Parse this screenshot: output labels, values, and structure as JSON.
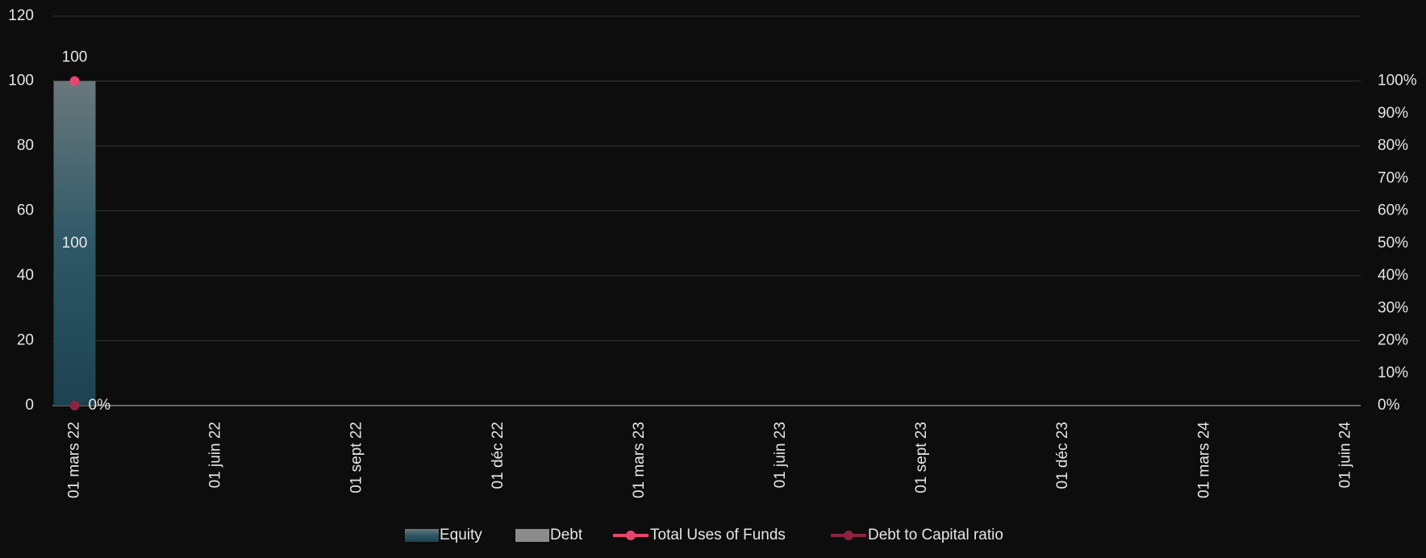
{
  "chart_data": {
    "type": "bar",
    "categories": [
      "01 mars 22",
      "01 juin 22",
      "01 sept 22",
      "01 déc 22",
      "01 mars 23",
      "01 juin 23",
      "01 sept 23",
      "01 déc 23",
      "01 mars 24",
      "01 juin 24"
    ],
    "series": [
      {
        "name": "Equity",
        "color": "#2e5866",
        "type": "bar",
        "values": [
          100,
          null,
          null,
          null,
          null,
          null,
          null,
          null,
          null,
          null
        ],
        "value_labels": [
          "100",
          null,
          null,
          null,
          null,
          null,
          null,
          null,
          null,
          null
        ]
      },
      {
        "name": "Debt",
        "color": "#8c8c8c",
        "type": "bar",
        "values": [
          0,
          null,
          null,
          null,
          null,
          null,
          null,
          null,
          null,
          null
        ]
      },
      {
        "name": "Total Uses of Funds",
        "color": "#e8456e",
        "type": "line",
        "values": [
          100,
          null,
          null,
          null,
          null,
          null,
          null,
          null,
          null,
          null
        ],
        "value_labels": [
          "100",
          null,
          null,
          null,
          null,
          null,
          null,
          null,
          null,
          null
        ]
      },
      {
        "name": "Debt to Capital ratio",
        "color": "#8b2340",
        "type": "line",
        "axis": "y2",
        "values": [
          0,
          null,
          null,
          null,
          null,
          null,
          null,
          null,
          null,
          null
        ],
        "value_labels": [
          "0%",
          null,
          null,
          null,
          null,
          null,
          null,
          null,
          null,
          null
        ]
      }
    ],
    "ylim": [
      0,
      120
    ],
    "yticks": [
      0,
      20,
      40,
      60,
      80,
      100,
      120
    ],
    "y2lim": [
      0,
      1.2
    ],
    "y2ticks": [
      {
        "value": 0,
        "label": "0%"
      },
      {
        "value": 0.1,
        "label": "10%"
      },
      {
        "value": 0.2,
        "label": "20%"
      },
      {
        "value": 0.3,
        "label": "30%"
      },
      {
        "value": 0.4,
        "label": "40%"
      },
      {
        "value": 0.5,
        "label": "50%"
      },
      {
        "value": 0.6,
        "label": "60%"
      },
      {
        "value": 0.7,
        "label": "70%"
      },
      {
        "value": 0.8,
        "label": "80%"
      },
      {
        "value": 0.9,
        "label": "90%"
      },
      {
        "value": 1.0,
        "label": "100%"
      }
    ],
    "grid": true,
    "legend": "bottom"
  }
}
